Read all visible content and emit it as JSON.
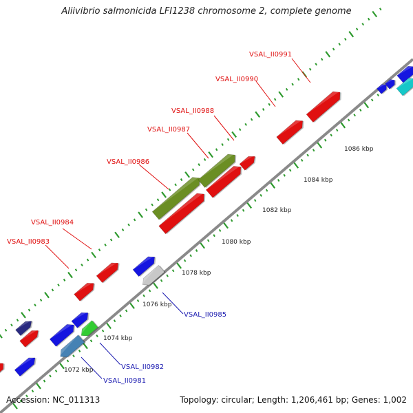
{
  "title": "Aliivibrio salmonicida LFI1238 chromosome 2, complete genome",
  "footer": {
    "accession": "Accession: NC_011313",
    "summary": "Topology: circular; Length: 1,206,461 bp; Genes: 1,002"
  },
  "axis": {
    "unit": "kbp",
    "tick_labels": [
      "1072 kbp",
      "1074 kbp",
      "1076 kbp",
      "1078 kbp",
      "1080 kbp",
      "1082 kbp",
      "1084 kbp",
      "1086 kbp"
    ]
  },
  "genes": {
    "forward_labeled": [
      "VSAL_II0983",
      "VSAL_II0984",
      "VSAL_II0986",
      "VSAL_II0987",
      "VSAL_II0988",
      "VSAL_II0990",
      "VSAL_II0991"
    ],
    "reverse_labeled": [
      "VSAL_II0981",
      "VSAL_II0982",
      "VSAL_II0985"
    ]
  },
  "colors": {
    "forward_label": "#e01010",
    "reverse_label": "#1a1ab0",
    "backbone": "#8a8a8a",
    "tick": "#2e9a2e",
    "red_gene": "#e01010",
    "green_gene": "#6b8e23",
    "blue_gene": "#1515e0",
    "bright_green_gene": "#33cc33",
    "steel_blue_gene": "#4682b4",
    "grey_gene": "#c8c8c8",
    "navy_gene": "#2a2a80",
    "cyan_gene": "#16c8c8"
  }
}
